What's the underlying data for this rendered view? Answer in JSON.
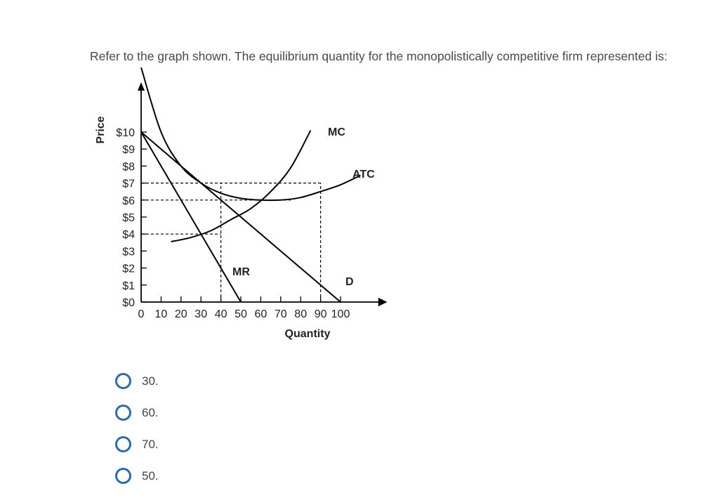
{
  "question": {
    "text": "Refer to the graph shown. The equilibrium quantity for the monopolistically competitive firm represented is:"
  },
  "chart_data": {
    "type": "line",
    "title": "",
    "xlabel": "Quantity",
    "ylabel": "Price",
    "xlim": [
      0,
      100
    ],
    "ylim": [
      0,
      10
    ],
    "x_ticks": [
      0,
      10,
      20,
      30,
      40,
      50,
      60,
      70,
      80,
      90,
      100
    ],
    "x_tick_labels": [
      "0",
      "10",
      "20",
      "30",
      "40",
      "50",
      "60",
      "70",
      "80",
      "90",
      "100"
    ],
    "y_ticks": [
      0,
      1,
      2,
      3,
      4,
      5,
      6,
      7,
      8,
      9,
      10
    ],
    "y_tick_labels": [
      "$0",
      "$1",
      "$2",
      "$3",
      "$4",
      "$5",
      "$6",
      "$7",
      "$8",
      "$9",
      "$10"
    ],
    "grid": false,
    "series": [
      {
        "name": "D",
        "x": [
          0,
          100
        ],
        "y": [
          10,
          0
        ]
      },
      {
        "name": "MR",
        "x": [
          0,
          50
        ],
        "y": [
          10,
          0
        ]
      },
      {
        "name": "MC",
        "x": [
          15,
          25,
          35,
          45,
          55,
          65,
          75,
          85
        ],
        "y": [
          3.55,
          3.8,
          4.2,
          4.85,
          5.5,
          6.5,
          7.9,
          10.1
        ]
      },
      {
        "name": "ATC",
        "x": [
          0,
          10,
          20,
          30,
          40,
          50,
          60,
          70,
          80,
          90,
          100,
          110
        ],
        "y": [
          13.8,
          10.0,
          8.0,
          7.0,
          6.4,
          6.1,
          6.0,
          6.0,
          6.15,
          6.5,
          6.9,
          7.45
        ]
      }
    ],
    "reference_lines": [
      {
        "from": [
          0,
          7
        ],
        "to": [
          90,
          7
        ]
      },
      {
        "from": [
          0,
          6
        ],
        "to": [
          75,
          6
        ]
      },
      {
        "from": [
          0,
          4
        ],
        "to": [
          40,
          4
        ]
      },
      {
        "from": [
          40,
          0
        ],
        "to": [
          40,
          7
        ]
      },
      {
        "from": [
          90,
          0
        ],
        "to": [
          90,
          7
        ]
      }
    ]
  },
  "answers": [
    {
      "label": "30."
    },
    {
      "label": "60."
    },
    {
      "label": "70."
    },
    {
      "label": "50."
    }
  ]
}
